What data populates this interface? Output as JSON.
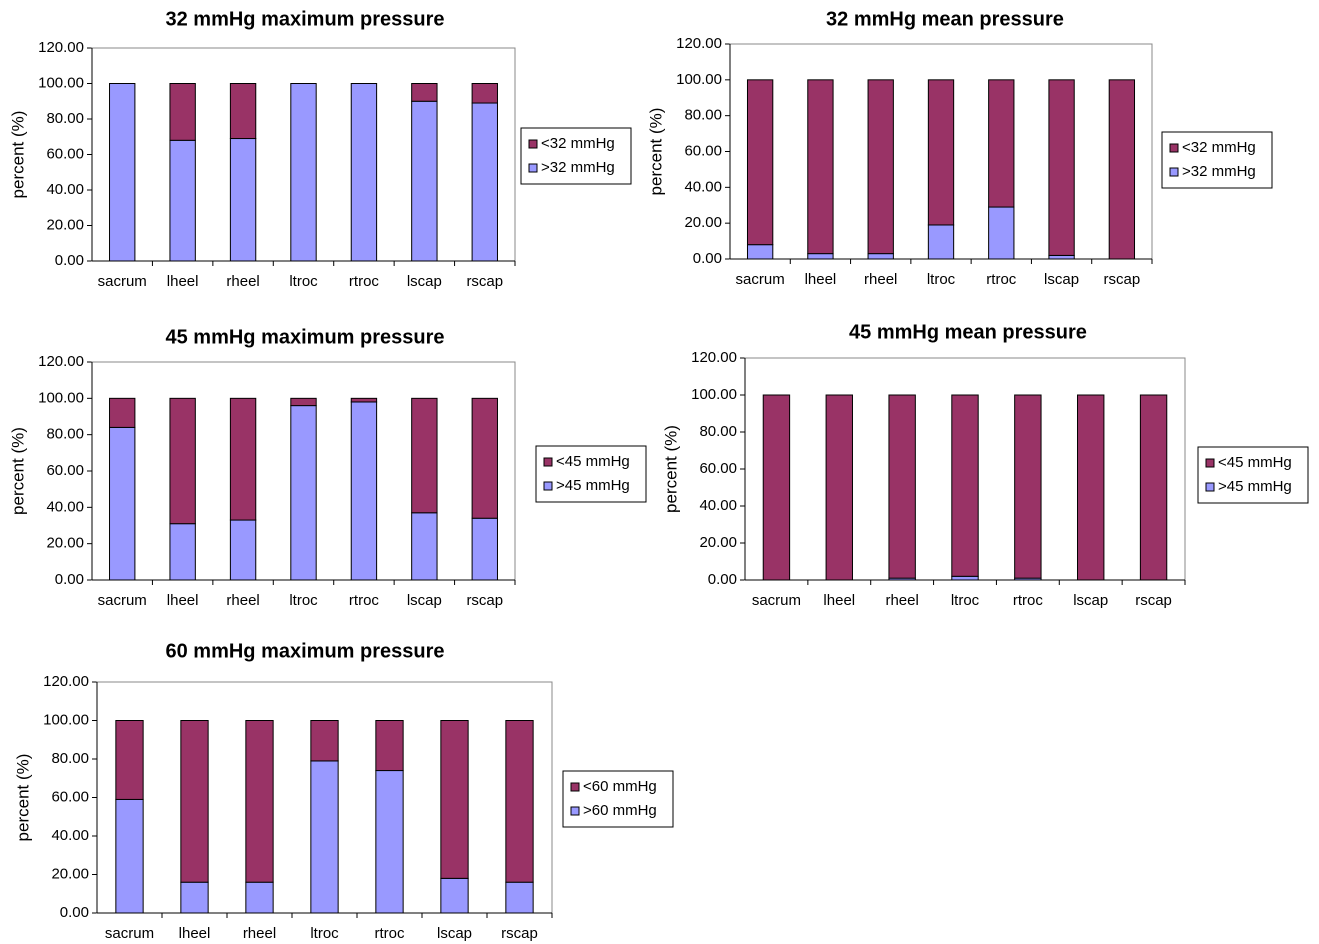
{
  "chart_data": [
    {
      "type": "bar",
      "stacked": true,
      "title": "32 mmHg maximum pressure",
      "ylabel": "percent (%)",
      "categories": [
        "sacrum",
        "lheel",
        "rheel",
        "ltroc",
        "rtroc",
        "lscap",
        "rscap"
      ],
      "series": [
        {
          "name": ">32 mmHg",
          "color": "#9999ff",
          "values": [
            100,
            68,
            69,
            100,
            100,
            90,
            89
          ]
        },
        {
          "name": "<32 mmHg",
          "color": "#993366",
          "values": [
            0,
            32,
            31,
            0,
            0,
            10,
            11
          ]
        }
      ],
      "ylim": [
        0,
        120
      ],
      "yticks": [
        {
          "value": 0,
          "label": "0.00"
        },
        {
          "value": 20,
          "label": "20.00"
        },
        {
          "value": 40,
          "label": "40.00"
        },
        {
          "value": 60,
          "label": "60.00"
        },
        {
          "value": 80,
          "label": "80.00"
        },
        {
          "value": 100,
          "label": "100.00"
        },
        {
          "value": 120,
          "label": "120.00"
        }
      ]
    },
    {
      "type": "bar",
      "stacked": true,
      "title": "32 mmHg mean pressure",
      "ylabel": "percent (%)",
      "categories": [
        "sacrum",
        "lheel",
        "rheel",
        "ltroc",
        "rtroc",
        "lscap",
        "rscap"
      ],
      "series": [
        {
          "name": ">32 mmHg",
          "color": "#9999ff",
          "values": [
            8,
            3,
            3,
            19,
            29,
            2,
            0
          ]
        },
        {
          "name": "<32 mmHg",
          "color": "#993366",
          "values": [
            92,
            97,
            97,
            81,
            71,
            98,
            100
          ]
        }
      ],
      "ylim": [
        0,
        120
      ],
      "yticks": [
        {
          "value": 0,
          "label": "0.00"
        },
        {
          "value": 20,
          "label": "20.00"
        },
        {
          "value": 40,
          "label": "40.00"
        },
        {
          "value": 60,
          "label": "60.00"
        },
        {
          "value": 80,
          "label": "80.00"
        },
        {
          "value": 100,
          "label": "100.00"
        },
        {
          "value": 120,
          "label": "120.00"
        }
      ]
    },
    {
      "type": "bar",
      "stacked": true,
      "title": "45 mmHg maximum pressure",
      "ylabel": "percent (%)",
      "categories": [
        "sacrum",
        "lheel",
        "rheel",
        "ltroc",
        "rtroc",
        "lscap",
        "rscap"
      ],
      "series": [
        {
          "name": ">45 mmHg",
          "color": "#9999ff",
          "values": [
            84,
            31,
            33,
            96,
            98,
            37,
            34
          ]
        },
        {
          "name": "<45 mmHg",
          "color": "#993366",
          "values": [
            16,
            69,
            67,
            4,
            2,
            63,
            66
          ]
        }
      ],
      "ylim": [
        0,
        120
      ],
      "yticks": [
        {
          "value": 0,
          "label": "0.00"
        },
        {
          "value": 20,
          "label": "20.00"
        },
        {
          "value": 40,
          "label": "40.00"
        },
        {
          "value": 60,
          "label": "60.00"
        },
        {
          "value": 80,
          "label": "80.00"
        },
        {
          "value": 100,
          "label": "100.00"
        },
        {
          "value": 120,
          "label": "120.00"
        }
      ]
    },
    {
      "type": "bar",
      "stacked": true,
      "title": "45 mmHg mean pressure",
      "ylabel": "percent (%)",
      "categories": [
        "sacrum",
        "lheel",
        "rheel",
        "ltroc",
        "rtroc",
        "lscap",
        "rscap"
      ],
      "series": [
        {
          "name": ">45 mmHg",
          "color": "#9999ff",
          "values": [
            0,
            0,
            1,
            2,
            1,
            0,
            0
          ]
        },
        {
          "name": "<45 mmHg",
          "color": "#993366",
          "values": [
            100,
            100,
            99,
            98,
            99,
            100,
            100
          ]
        }
      ],
      "ylim": [
        0,
        120
      ],
      "yticks": [
        {
          "value": 0,
          "label": "0.00"
        },
        {
          "value": 20,
          "label": "20.00"
        },
        {
          "value": 40,
          "label": "40.00"
        },
        {
          "value": 60,
          "label": "60.00"
        },
        {
          "value": 80,
          "label": "80.00"
        },
        {
          "value": 100,
          "label": "100.00"
        },
        {
          "value": 120,
          "label": "120.00"
        }
      ]
    },
    {
      "type": "bar",
      "stacked": true,
      "title": "60 mmHg maximum pressure",
      "ylabel": "percent (%)",
      "categories": [
        "sacrum",
        "lheel",
        "rheel",
        "ltroc",
        "rtroc",
        "lscap",
        "rscap"
      ],
      "series": [
        {
          "name": ">60 mmHg",
          "color": "#9999ff",
          "values": [
            59,
            16,
            16,
            79,
            74,
            18,
            16
          ]
        },
        {
          "name": "<60 mmHg",
          "color": "#993366",
          "values": [
            41,
            84,
            84,
            21,
            26,
            82,
            84
          ]
        }
      ],
      "ylim": [
        0,
        120
      ],
      "yticks": [
        {
          "value": 0,
          "label": "0.00"
        },
        {
          "value": 20,
          "label": "20.00"
        },
        {
          "value": 40,
          "label": "40.00"
        },
        {
          "value": 60,
          "label": "60.00"
        },
        {
          "value": 80,
          "label": "80.00"
        },
        {
          "value": 100,
          "label": "100.00"
        },
        {
          "value": 120,
          "label": "120.00"
        }
      ]
    }
  ]
}
